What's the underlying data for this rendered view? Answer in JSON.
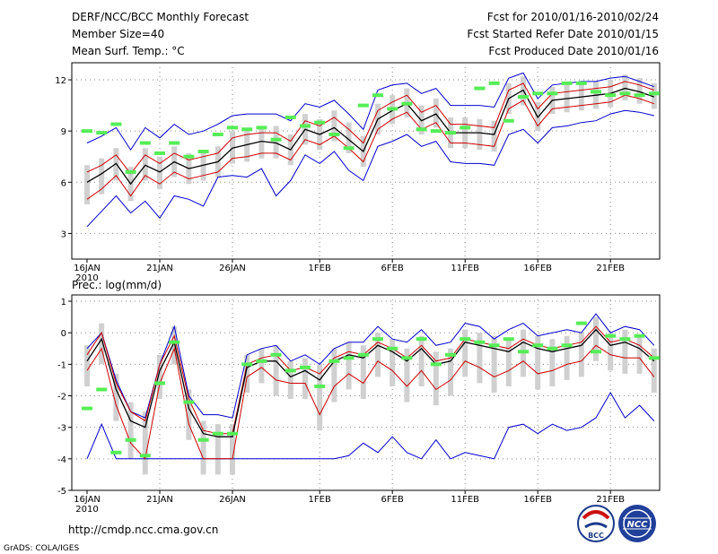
{
  "header": {
    "title": "DERF/NCC/BCC Monthly Forecast",
    "member_size": "Member Size=40",
    "variable": "Mean Surf. Temp.: °C",
    "forecast_range": "Fcst for 2010/01/16-2010/02/24",
    "started": "Fcst Started Refer Date 2010/01/15",
    "produced": "Fcst Produced Date 2010/01/16"
  },
  "footer": {
    "url": "http://cmdp.ncc.cma.gov.cn",
    "credit": "GrADS: COLA/IGES",
    "logo_bcc": "BCC",
    "logo_ncc": "NCC"
  },
  "colors": {
    "ensemble_mean": "#000000",
    "std_band": "#cc0000",
    "min_max": "#0000cc",
    "observed": "#55ee55",
    "box": "#d0d0d0",
    "grid": "#888888"
  },
  "chart_data": [
    {
      "type": "line",
      "title": "Mean Surf. Temp.: °C",
      "days": 40,
      "tick_day_index": [
        0,
        5,
        10,
        16,
        21,
        26,
        31,
        36
      ],
      "tick_labels": [
        "16JAN",
        "21JAN",
        "26JAN",
        "1FEB",
        "6FEB",
        "11FEB",
        "16FEB",
        "21FEB"
      ],
      "year_label": "2010",
      "ylim": [
        1.5,
        13
      ],
      "yticks": [
        3,
        6,
        9,
        12
      ],
      "ytick_labels": [
        "3",
        "6",
        "9",
        "12"
      ],
      "series": [
        {
          "name": "mean",
          "values": [
            6.0,
            6.5,
            7.1,
            5.9,
            7.0,
            6.6,
            7.2,
            6.8,
            7.0,
            7.2,
            8.0,
            8.2,
            8.4,
            8.3,
            7.9,
            9.1,
            8.8,
            9.2,
            8.5,
            7.8,
            9.7,
            10.2,
            10.6,
            9.6,
            10.0,
            8.9,
            8.9,
            8.9,
            8.8,
            10.9,
            11.4,
            9.8,
            10.8,
            10.9,
            11.0,
            11.1,
            11.2,
            11.5,
            11.3,
            11.0
          ]
        },
        {
          "name": "upper_std",
          "values": [
            6.6,
            7.0,
            7.6,
            6.5,
            7.6,
            7.1,
            7.7,
            7.3,
            7.5,
            7.7,
            8.6,
            8.8,
            8.9,
            8.9,
            8.4,
            9.6,
            9.3,
            9.8,
            9.1,
            8.3,
            10.2,
            10.7,
            11.1,
            10.1,
            10.5,
            9.4,
            9.4,
            9.3,
            9.2,
            11.4,
            11.8,
            10.3,
            11.2,
            11.3,
            11.4,
            11.5,
            11.6,
            11.9,
            11.7,
            11.4
          ]
        },
        {
          "name": "lower_std",
          "values": [
            5.0,
            5.6,
            6.4,
            5.2,
            6.4,
            5.9,
            6.6,
            6.2,
            6.4,
            6.6,
            7.4,
            7.5,
            7.7,
            7.7,
            7.3,
            8.5,
            8.2,
            8.7,
            8.0,
            7.2,
            9.1,
            9.7,
            10.1,
            9.1,
            9.5,
            8.3,
            8.3,
            8.2,
            8.1,
            10.3,
            10.8,
            9.3,
            10.3,
            10.4,
            10.5,
            10.6,
            10.7,
            11.1,
            10.9,
            10.6
          ]
        },
        {
          "name": "max",
          "values": [
            8.3,
            8.7,
            9.2,
            7.9,
            9.2,
            8.6,
            9.4,
            8.8,
            9.0,
            9.4,
            9.9,
            10.0,
            10.0,
            10.0,
            9.6,
            10.6,
            10.4,
            10.8,
            10.0,
            9.1,
            11.4,
            11.7,
            11.8,
            11.2,
            11.5,
            10.5,
            10.5,
            10.5,
            10.4,
            12.1,
            12.4,
            10.9,
            11.7,
            11.8,
            11.9,
            11.9,
            12.1,
            12.2,
            11.9,
            11.6
          ]
        },
        {
          "name": "min",
          "values": [
            3.4,
            4.3,
            5.2,
            4.2,
            4.9,
            3.9,
            5.2,
            5.0,
            4.6,
            6.3,
            6.4,
            6.3,
            6.8,
            5.2,
            6.1,
            7.6,
            7.1,
            7.8,
            6.7,
            6.1,
            8.1,
            8.4,
            8.8,
            8.1,
            8.4,
            7.2,
            7.1,
            7.1,
            7.0,
            8.8,
            9.1,
            8.3,
            9.2,
            9.3,
            9.5,
            9.6,
            10.0,
            10.2,
            10.1,
            9.9
          ]
        },
        {
          "name": "observed",
          "values": [
            9.0,
            8.9,
            9.4,
            6.6,
            8.3,
            7.7,
            8.3,
            7.5,
            7.8,
            8.8,
            9.2,
            9.1,
            9.2,
            8.5,
            9.8,
            9.3,
            9.5,
            8.8,
            8.0,
            10.5,
            11.1,
            10.3,
            10.6,
            9.1,
            9.0,
            8.9,
            9.2,
            11.5,
            11.8,
            9.6,
            11.0,
            11.2,
            11.2,
            11.8,
            11.8,
            11.3,
            11.1,
            11.2,
            11.1,
            11.2
          ]
        }
      ]
    },
    {
      "type": "line",
      "title": "Prec.: log(mm/d)",
      "days": 40,
      "tick_day_index": [
        0,
        5,
        10,
        16,
        21,
        26,
        31,
        36
      ],
      "tick_labels": [
        "16JAN",
        "21JAN",
        "26JAN",
        "1FEB",
        "6FEB",
        "11FEB",
        "16FEB",
        "21FEB"
      ],
      "year_label": "2010",
      "ylim": [
        -5,
        1.2
      ],
      "yticks": [
        -5,
        -4,
        -3,
        -2,
        -1,
        0,
        1
      ],
      "ytick_labels": [
        "-5",
        "-4",
        "-3",
        "-2",
        "-1",
        "0",
        "1"
      ],
      "series": [
        {
          "name": "mean",
          "values": [
            -0.9,
            -0.2,
            -1.8,
            -2.8,
            -3.0,
            -1.2,
            -0.3,
            -2.4,
            -3.2,
            -3.3,
            -3.3,
            -1.1,
            -0.9,
            -0.9,
            -1.4,
            -1.2,
            -1.5,
            -0.9,
            -0.7,
            -0.8,
            -0.4,
            -0.6,
            -0.9,
            -0.5,
            -1.0,
            -0.9,
            -0.3,
            -0.4,
            -0.5,
            -0.6,
            -0.3,
            -0.5,
            -0.6,
            -0.5,
            -0.4,
            0.1,
            -0.4,
            -0.3,
            -0.5,
            -0.9
          ]
        },
        {
          "name": "upper_std",
          "values": [
            -0.7,
            0.0,
            -1.6,
            -2.5,
            -2.8,
            -1.0,
            -0.1,
            -2.1,
            -3.1,
            -3.2,
            -3.2,
            -1.0,
            -0.8,
            -0.7,
            -1.2,
            -1.1,
            -1.3,
            -0.8,
            -0.6,
            -0.7,
            -0.3,
            -0.5,
            -0.8,
            -0.4,
            -0.9,
            -0.8,
            -0.2,
            -0.3,
            -0.4,
            -0.5,
            -0.2,
            -0.4,
            -0.5,
            -0.4,
            -0.3,
            0.2,
            -0.3,
            -0.2,
            -0.4,
            -0.8
          ]
        },
        {
          "name": "lower_std",
          "values": [
            -1.2,
            -0.5,
            -2.3,
            -3.5,
            -4.0,
            -1.6,
            -0.5,
            -2.9,
            -4.0,
            -4.0,
            -4.0,
            -1.4,
            -1.1,
            -1.5,
            -1.6,
            -1.6,
            -2.6,
            -1.7,
            -1.3,
            -1.6,
            -0.9,
            -1.2,
            -1.7,
            -1.2,
            -1.8,
            -1.5,
            -0.9,
            -1.1,
            -1.4,
            -1.2,
            -0.9,
            -1.3,
            -1.2,
            -1.0,
            -0.9,
            -0.4,
            -0.7,
            -0.8,
            -0.8,
            -1.4
          ]
        },
        {
          "name": "max",
          "values": [
            -0.5,
            0.0,
            -1.5,
            -2.5,
            -2.7,
            -1.0,
            0.2,
            -2.0,
            -2.6,
            -2.6,
            -2.7,
            -0.7,
            -0.5,
            -0.4,
            -0.9,
            -0.7,
            -1.0,
            -0.5,
            -0.3,
            -0.3,
            0.2,
            -0.2,
            -0.3,
            0.1,
            -0.4,
            -0.3,
            0.3,
            0.2,
            -0.2,
            0.1,
            0.3,
            -0.1,
            0.0,
            0.1,
            0.0,
            0.6,
            0.0,
            0.2,
            0.1,
            -0.4
          ]
        },
        {
          "name": "min",
          "values": [
            -4.0,
            -2.9,
            -4.0,
            -4.0,
            -4.0,
            -4.0,
            -4.0,
            -4.0,
            -4.0,
            -4.0,
            -4.0,
            -4.0,
            -4.0,
            -4.0,
            -4.0,
            -4.0,
            -4.0,
            -4.0,
            -3.9,
            -3.5,
            -3.8,
            -3.3,
            -3.8,
            -4.0,
            -3.4,
            -4.0,
            -3.8,
            -3.9,
            -4.0,
            -3.0,
            -2.9,
            -3.2,
            -2.9,
            -3.1,
            -3.0,
            -2.7,
            -1.9,
            -2.7,
            -2.3,
            -2.8
          ]
        },
        {
          "name": "observed",
          "values": [
            -2.4,
            -1.8,
            -3.8,
            -3.4,
            -3.9,
            -1.6,
            -0.3,
            -2.2,
            -3.4,
            -3.2,
            -3.2,
            -1.0,
            -0.9,
            -0.7,
            -1.2,
            -1.1,
            -1.7,
            -0.9,
            -0.8,
            -0.7,
            -0.2,
            -0.5,
            -0.8,
            -0.2,
            -1.0,
            -0.7,
            -0.2,
            -0.3,
            -0.4,
            -0.2,
            -0.6,
            -0.4,
            -0.5,
            -0.4,
            0.3,
            -0.6,
            -0.1,
            -0.2,
            -0.1,
            -0.8
          ]
        }
      ]
    }
  ]
}
